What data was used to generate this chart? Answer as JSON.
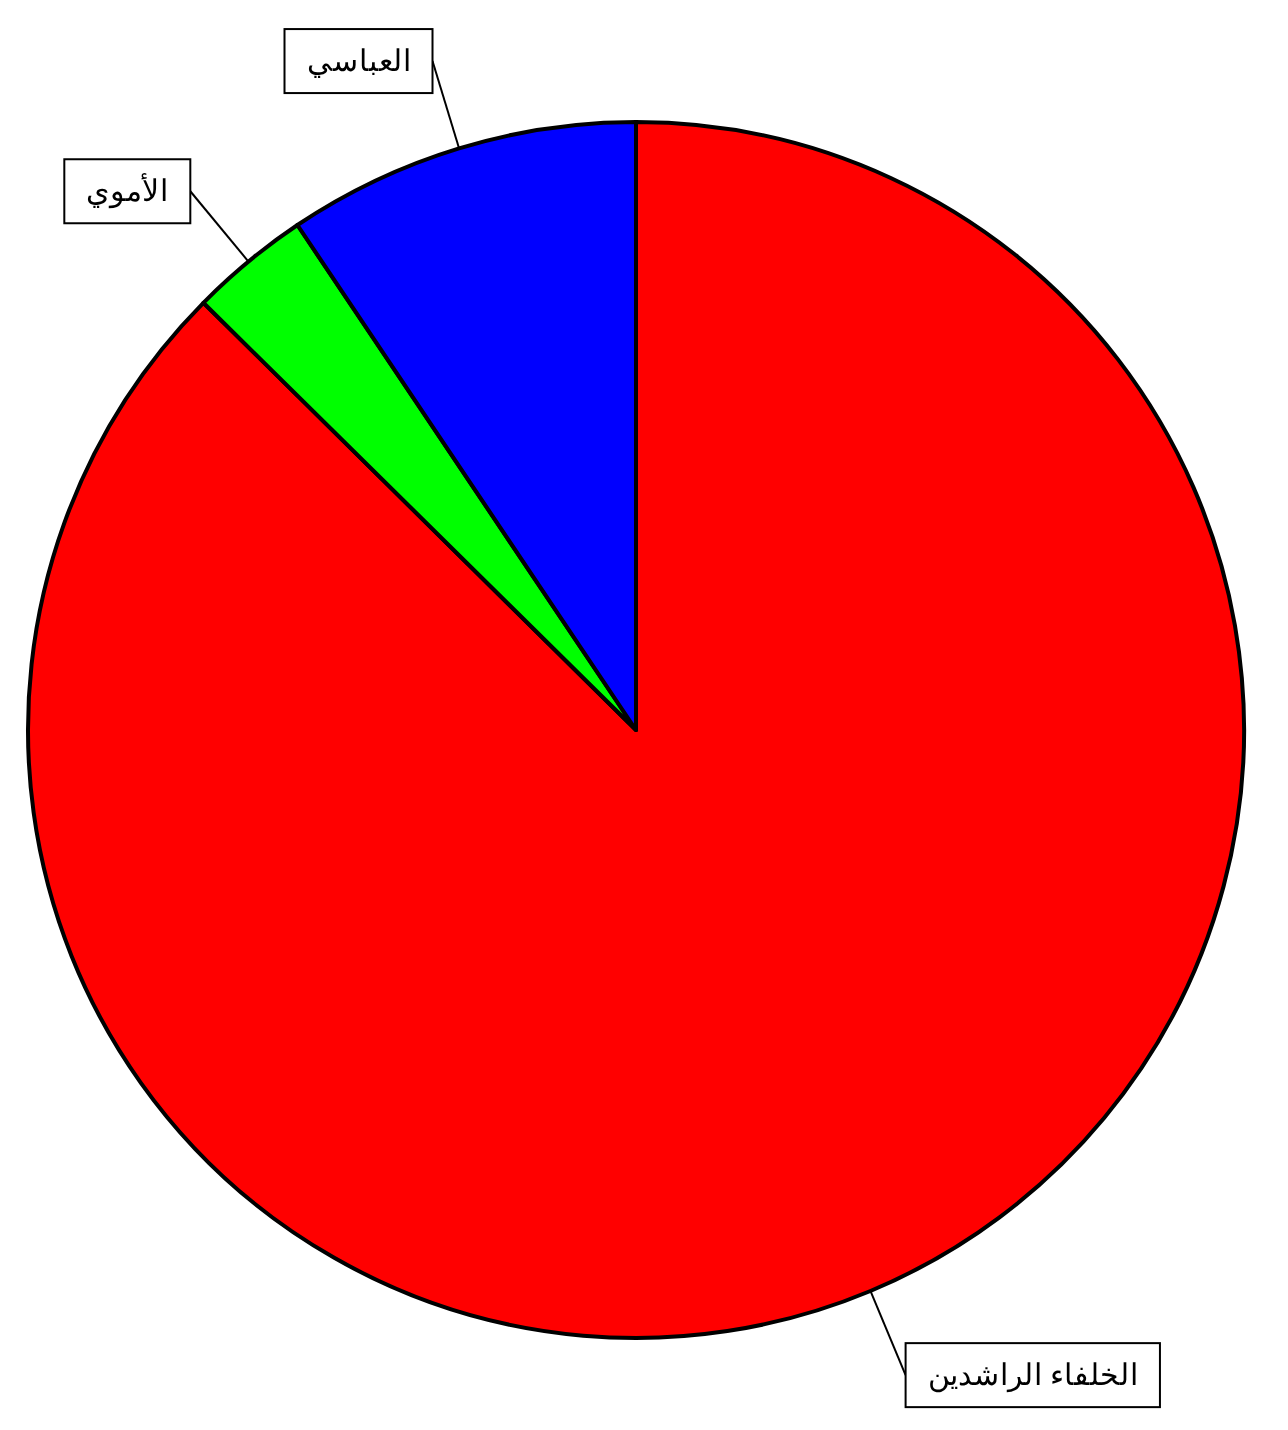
{
  "chart_data": {
    "type": "pie",
    "categories": [
      "الخلفاء الراشدين",
      "الأموي",
      "العباسي"
    ],
    "values": [
      87.4,
      3.2,
      9.4
    ],
    "colors": [
      "#ff0000",
      "#00ff00",
      "#0000ff"
    ],
    "legend": false
  }
}
